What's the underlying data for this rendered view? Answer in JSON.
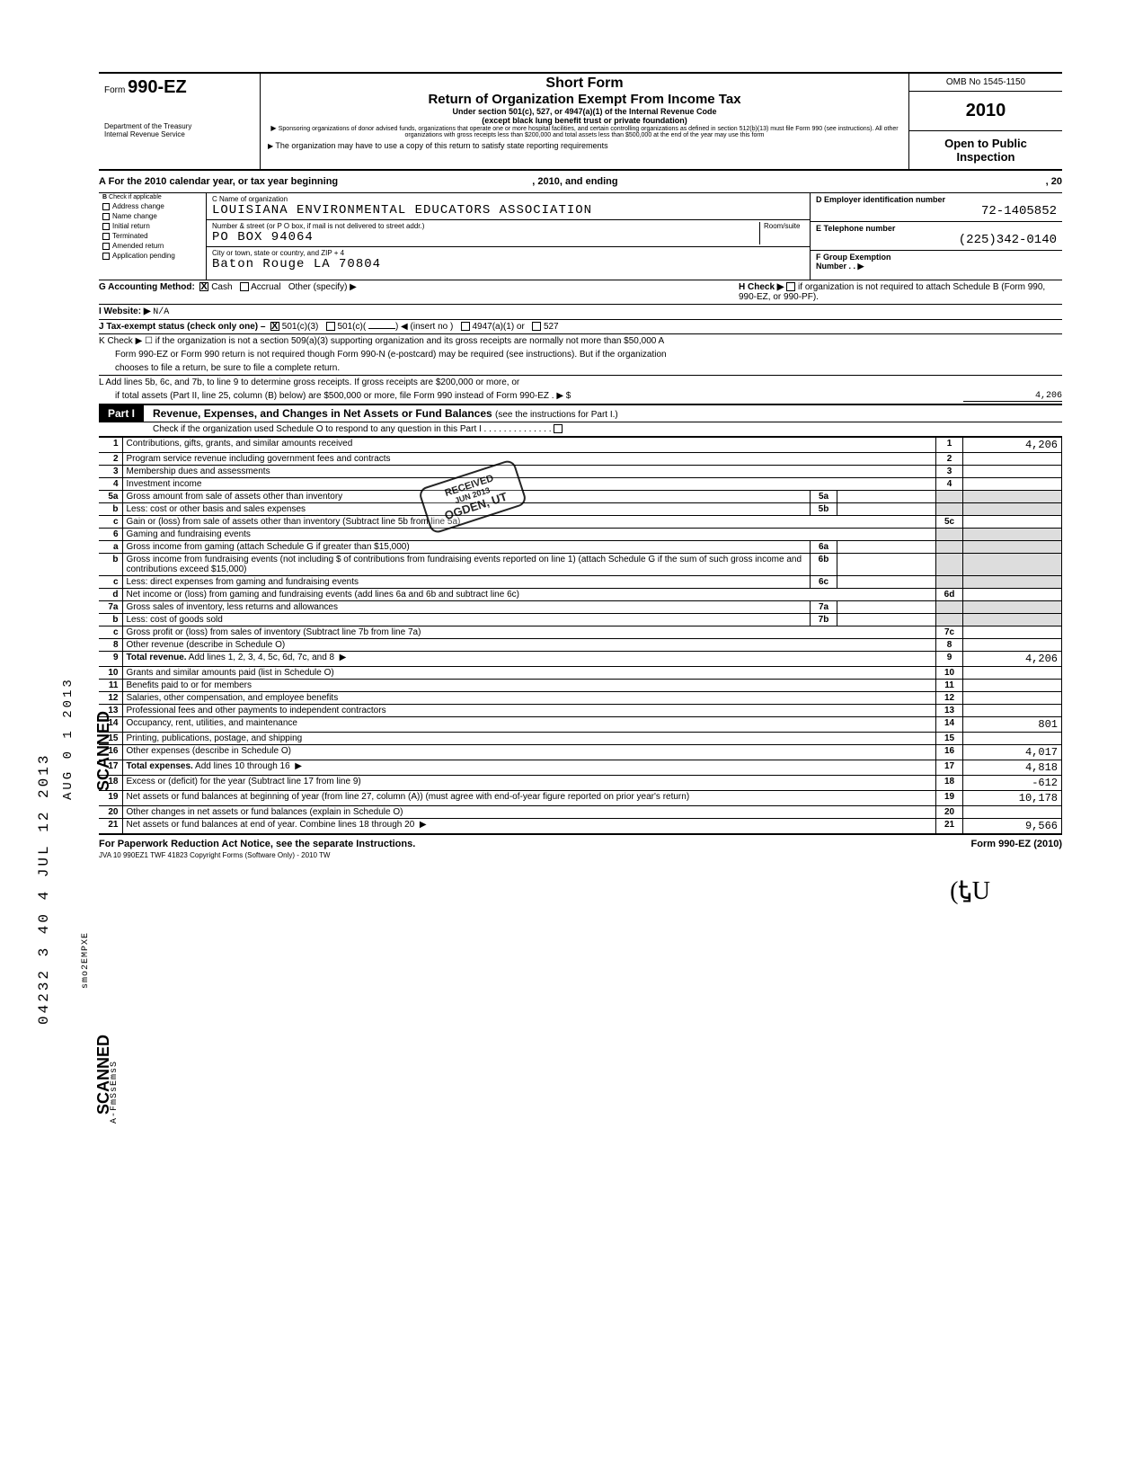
{
  "header": {
    "form_prefix": "Form",
    "form_number": "990-EZ",
    "dept1": "Department of the Treasury",
    "dept2": "Internal Revenue Service",
    "short_form": "Short Form",
    "title": "Return of Organization Exempt From Income Tax",
    "sub": "Under section 501(c), 527, or 4947(a)(1) of the Internal Revenue Code",
    "sub2": "(except black lung benefit trust or private foundation)",
    "tiny": "Sponsoring organizations of donor advised funds, organizations that operate one or more hospital facilities, and certain controlling organizations as defined in section 512(b)(13) must file Form 990 (see instructions). All other organizations with gross receipts less than $200,000 and total assets less than $500,000 at the end of the year may use this form",
    "note": "The organization may have to use a copy of this return to satisfy state reporting requirements",
    "omb": "OMB No 1545-1150",
    "year": "2010",
    "otp1": "Open to Public",
    "otp2": "Inspection"
  },
  "A": {
    "text": "For the 2010 calendar year, or tax year beginning",
    "mid": ", 2010, and ending",
    "end": ", 20"
  },
  "B": {
    "caption": "Check if applicable",
    "opts": [
      "Address change",
      "Name change",
      "Initial return",
      "Terminated",
      "Amended return",
      "Application pending"
    ]
  },
  "C": {
    "name_cap": "C  Name of organization",
    "name": "LOUISIANA ENVIRONMENTAL EDUCATORS ASSOCIATION",
    "addr_cap": "Number & street (or P O  box, if mail is not delivered to street addr.)",
    "room": "Room/suite",
    "addr": "PO BOX 94064",
    "city_cap": "City or town, state or country, and ZIP + 4",
    "city": "Baton Rouge LA  70804"
  },
  "D": {
    "cap": "D  Employer identification number",
    "val": "72-1405852"
  },
  "E": {
    "cap": "E  Telephone number",
    "val": "(225)342-0140"
  },
  "F": {
    "cap": "F  Group Exemption",
    "cap2": "Number . .  ▶"
  },
  "G": {
    "lbl": "G  Accounting Method:",
    "cash": "Cash",
    "accrual": "Accrual",
    "other": "Other (specify) ▶"
  },
  "H": {
    "lbl": "H   Check ▶",
    "txt": "if organization is not required to attach Schedule B (Form 990, 990-EZ, or 990-PF)."
  },
  "I": {
    "lbl": "I   Website: ▶",
    "val": "N/A"
  },
  "J": {
    "lbl": "J   Tax-exempt status (check only one) –",
    "a": "501(c)(3)",
    "b": "501(c)(",
    "c": ") ◀ (insert no )",
    "d": "4947(a)(1) or",
    "e": "527"
  },
  "K": {
    "l1": "K  Check ▶ ☐  if the organization is not a section 509(a)(3) supporting organization  and its gross receipts are normally not more than $50,000  A",
    "l2": "Form 990-EZ or Form 990 return is not required though Form 990-N (e-postcard) may be required (see instructions). But if the organization",
    "l3": "chooses to file a return, be sure to file a complete return."
  },
  "L": {
    "l1": "L  Add lines 5b, 6c, and 7b, to line 9 to determine gross receipts. If gross receipts are $200,000 or more, or",
    "l2": "if total assets (Part II, line 25, column (B) below) are $500,000 or more, file Form 990 instead of Form 990-EZ  .   ▶  $",
    "val": "4,206"
  },
  "part1": {
    "badge": "Part I",
    "title": "Revenue, Expenses, and Changes in Net Assets or Fund Balances",
    "sub": "(see the instructions for Part I.)",
    "check": "Check if the organization used Schedule O to respond to any question in this Part I"
  },
  "lines": [
    {
      "n": "1",
      "d": "Contributions, gifts, grants, and similar amounts received",
      "box": "1",
      "amt": "4,206"
    },
    {
      "n": "2",
      "d": "Program service revenue including government fees and contracts",
      "box": "2",
      "amt": ""
    },
    {
      "n": "3",
      "d": "Membership dues and assessments",
      "box": "3",
      "amt": ""
    },
    {
      "n": "4",
      "d": "Investment income",
      "box": "4",
      "amt": ""
    },
    {
      "n": "5a",
      "d": "Gross amount from sale of assets other than inventory",
      "box": "5a",
      "amt": "",
      "inner": true
    },
    {
      "n": "b",
      "d": "Less: cost or other basis and sales expenses",
      "box": "5b",
      "amt": "",
      "inner": true
    },
    {
      "n": "c",
      "d": "Gain or (loss) from sale of assets other than inventory (Subtract line 5b from line 5a)",
      "box": "5c",
      "amt": ""
    },
    {
      "n": "6",
      "d": "Gaming and fundraising events",
      "box": "",
      "amt": "",
      "shade": true
    },
    {
      "n": "a",
      "d": "Gross income from gaming (attach Schedule G if greater than $15,000)",
      "box": "6a",
      "amt": "",
      "inner": true
    },
    {
      "n": "b",
      "d": "Gross income from fundraising events (not including $                of contributions from fundraising events reported on line 1) (attach Schedule G if the sum of such gross income and contributions exceed $15,000)",
      "box": "6b",
      "amt": "",
      "inner": true
    },
    {
      "n": "c",
      "d": "Less: direct expenses from gaming and fundraising events",
      "box": "6c",
      "amt": "",
      "inner": true
    },
    {
      "n": "d",
      "d": "Net income or (loss) from gaming and fundraising events (add lines 6a and 6b and subtract line 6c)",
      "box": "6d",
      "amt": ""
    },
    {
      "n": "7a",
      "d": "Gross sales of inventory, less returns and allowances",
      "box": "7a",
      "amt": "",
      "inner": true
    },
    {
      "n": "b",
      "d": "Less: cost of goods sold",
      "box": "7b",
      "amt": "",
      "inner": true
    },
    {
      "n": "c",
      "d": "Gross profit or (loss) from sales of inventory (Subtract line 7b from line 7a)",
      "box": "7c",
      "amt": ""
    },
    {
      "n": "8",
      "d": "Other revenue (describe in Schedule O)",
      "box": "8",
      "amt": ""
    },
    {
      "n": "9",
      "d": "Total revenue. Add lines 1, 2, 3, 4, 5c, 6d, 7c, and 8",
      "box": "9",
      "amt": "4,206",
      "arrow": true,
      "bold": true
    },
    {
      "n": "10",
      "d": "Grants and similar amounts paid (list in Schedule O)",
      "box": "10",
      "amt": ""
    },
    {
      "n": "11",
      "d": "Benefits paid to or for members",
      "box": "11",
      "amt": ""
    },
    {
      "n": "12",
      "d": "Salaries, other compensation, and employee benefits",
      "box": "12",
      "amt": ""
    },
    {
      "n": "13",
      "d": "Professional fees and other payments to independent contractors",
      "box": "13",
      "amt": ""
    },
    {
      "n": "14",
      "d": "Occupancy, rent, utilities, and maintenance",
      "box": "14",
      "amt": "801"
    },
    {
      "n": "15",
      "d": "Printing, publications, postage, and shipping",
      "box": "15",
      "amt": ""
    },
    {
      "n": "16",
      "d": "Other expenses (describe in Schedule O)",
      "box": "16",
      "amt": "4,017"
    },
    {
      "n": "17",
      "d": "Total expenses. Add lines 10 through 16",
      "box": "17",
      "amt": "4,818",
      "arrow": true,
      "bold": true
    },
    {
      "n": "18",
      "d": "Excess or (deficit) for the year (Subtract line 17 from line 9)",
      "box": "18",
      "amt": "-612"
    },
    {
      "n": "19",
      "d": "Net assets or fund balances at beginning of year (from line 27, column (A)) (must agree with end-of-year figure reported on prior year's return)",
      "box": "19",
      "amt": "10,178"
    },
    {
      "n": "20",
      "d": "Other changes in net assets or fund balances (explain in Schedule O)",
      "box": "20",
      "amt": ""
    },
    {
      "n": "21",
      "d": "Net assets or fund balances at end of year. Combine lines 18 through 20",
      "box": "21",
      "amt": "9,566",
      "arrow": true
    }
  ],
  "footer": {
    "l": "For Paperwork Reduction Act Notice, see the separate Instructions.",
    "m": "JVA     10  990EZ1     TWF 41823      Copyright Forms (Software Only) - 2010 TW",
    "r": "Form 990-EZ  (2010)"
  },
  "side": {
    "num": "04232 3 40 4 JUL 12 2013",
    "date2": "AUG 0 1 2013",
    "scanned": "SCANNED",
    "stamp1": "RECEIVED",
    "stamp2": "JUN    2013",
    "stamp3": "OGDEN, UT",
    "sidecode": "smo2EMPXE",
    "sidecode2": "A-FmSsEmsS"
  }
}
